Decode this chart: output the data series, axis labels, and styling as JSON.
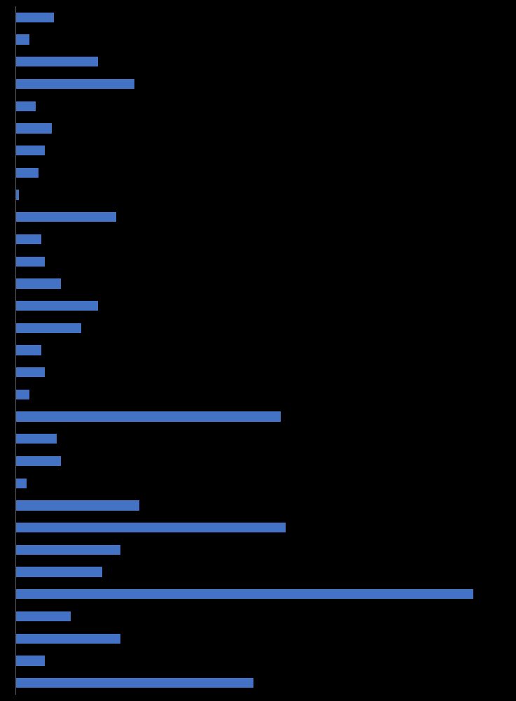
{
  "values": [
    4.2,
    1.5,
    9.0,
    13.0,
    2.2,
    4.0,
    3.2,
    2.5,
    0.4,
    11.0,
    2.8,
    3.2,
    5.0,
    9.0,
    7.2,
    2.8,
    3.2,
    1.5,
    29.0,
    4.5,
    5.0,
    1.2,
    13.5,
    29.5,
    11.5,
    9.5,
    50.0,
    6.0,
    11.5,
    3.2,
    26.0
  ],
  "bar_color": "#4472C4",
  "background_color": "#000000",
  "axes_color": "#555555",
  "bar_height": 0.45
}
